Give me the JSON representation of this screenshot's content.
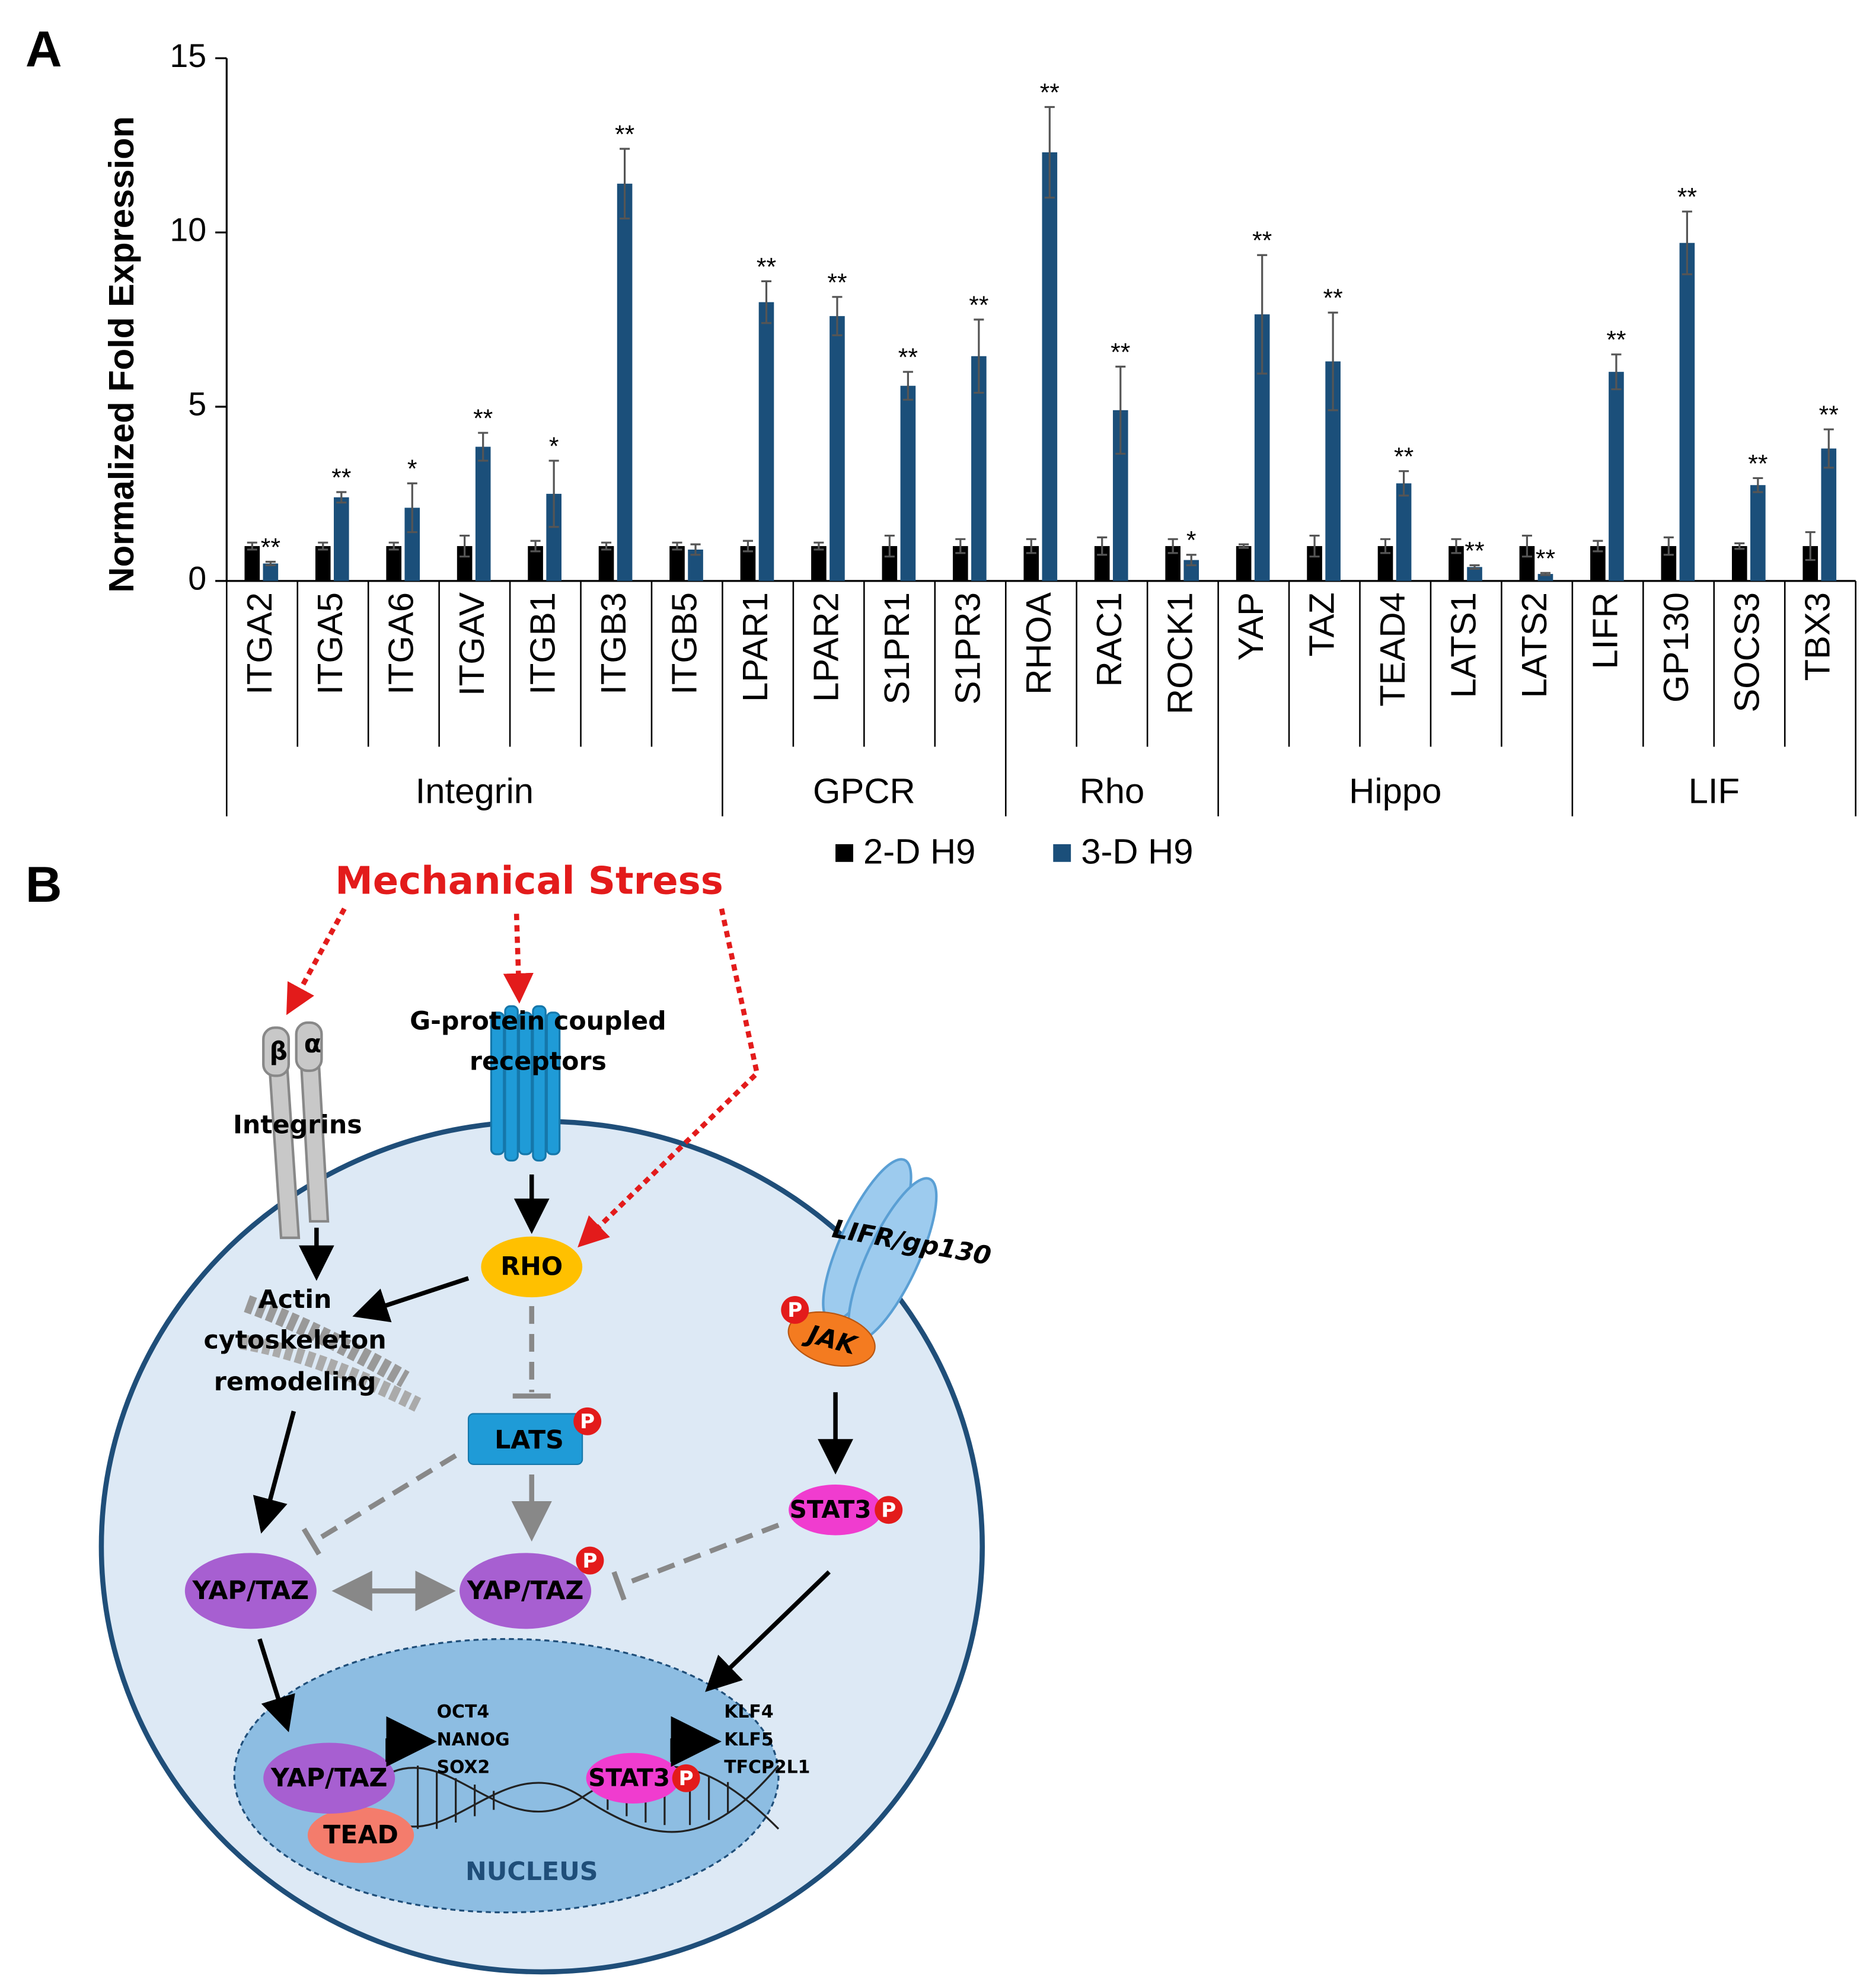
{
  "panels": [
    "A",
    "B"
  ],
  "chart_data": {
    "type": "bar",
    "y_label": "Normalized Fold Expression",
    "categories": [
      "ITGA2",
      "ITGA5",
      "ITGA6",
      "ITGAV",
      "ITGB1",
      "ITGB3",
      "ITGB5",
      "LPAR1",
      "LPAR2",
      "S1PR1",
      "S1PR3",
      "RHOA",
      "RAC1",
      "ROCK1",
      "YAP",
      "TAZ",
      "TEAD4",
      "LATS1",
      "LATS2",
      "LIFR",
      "GP130",
      "SOCS3",
      "TBX3"
    ],
    "groups": [
      {
        "name": "Integrin",
        "span": 7
      },
      {
        "name": "GPCR",
        "span": 4
      },
      {
        "name": "Rho",
        "span": 3
      },
      {
        "name": "Hippo",
        "span": 5
      },
      {
        "name": "LIF",
        "span": 4
      }
    ],
    "series": [
      {
        "name": "2-D H9",
        "color": "#000000",
        "values": [
          1,
          1,
          1,
          1,
          1,
          1,
          1,
          1,
          1,
          1,
          1,
          1,
          1,
          1,
          1,
          1,
          1,
          1,
          1,
          1,
          1,
          1,
          1
        ],
        "errors": [
          0.1,
          0.1,
          0.1,
          0.3,
          0.15,
          0.1,
          0.1,
          0.15,
          0.1,
          0.3,
          0.2,
          0.2,
          0.25,
          0.2,
          0.05,
          0.3,
          0.2,
          0.2,
          0.3,
          0.15,
          0.25,
          0.08,
          0.4
        ]
      },
      {
        "name": "3-D H9",
        "color": "#1b4f7a",
        "values": [
          0.5,
          2.4,
          2.1,
          3.85,
          2.5,
          11.4,
          0.9,
          8.0,
          7.6,
          5.6,
          6.45,
          12.3,
          4.9,
          0.6,
          7.65,
          6.3,
          2.8,
          0.4,
          0.2,
          6.0,
          9.7,
          2.75,
          3.8
        ],
        "errors": [
          0.05,
          0.15,
          0.7,
          0.4,
          0.95,
          1.0,
          0.15,
          0.6,
          0.55,
          0.4,
          1.05,
          1.3,
          1.25,
          0.15,
          1.7,
          1.4,
          0.35,
          0.05,
          0.03,
          0.5,
          0.9,
          0.2,
          0.55
        ]
      }
    ],
    "annotations": [
      "**",
      "**",
      "*",
      "**",
      "*",
      "**",
      null,
      "**",
      "**",
      "**",
      "**",
      "**",
      "**",
      "*",
      "**",
      "**",
      "**",
      "**",
      "**",
      "**",
      "**",
      "**",
      "**"
    ],
    "ylim": [
      0,
      15
    ],
    "yticks": [
      0,
      5,
      10,
      15
    ]
  },
  "diagram": {
    "stress": "Mechanical Stress",
    "gpcr": [
      "G-protein coupled",
      "receptors"
    ],
    "beta": "β",
    "alpha": "α",
    "integrins": "Integrins",
    "rho": "RHO",
    "actin": [
      "Actin",
      "cytoskeleton",
      "remodeling"
    ],
    "lats": "LATS",
    "lifr": "LIFR/gp130",
    "jak": "JAK",
    "stat3": [
      "STAT3",
      "STAT3"
    ],
    "yaptaz": [
      "YAP/TAZ",
      "YAP/TAZ",
      "YAP/TAZ"
    ],
    "tead": "TEAD",
    "yap_targets": [
      "OCT4",
      "NANOG",
      "SOX2"
    ],
    "stat3_targets": [
      "KLF4",
      "KLF5",
      "TFCP2L1"
    ],
    "nucleus": "NUCLEUS",
    "phospho": [
      "P",
      "P",
      "P",
      "P",
      "P"
    ]
  }
}
